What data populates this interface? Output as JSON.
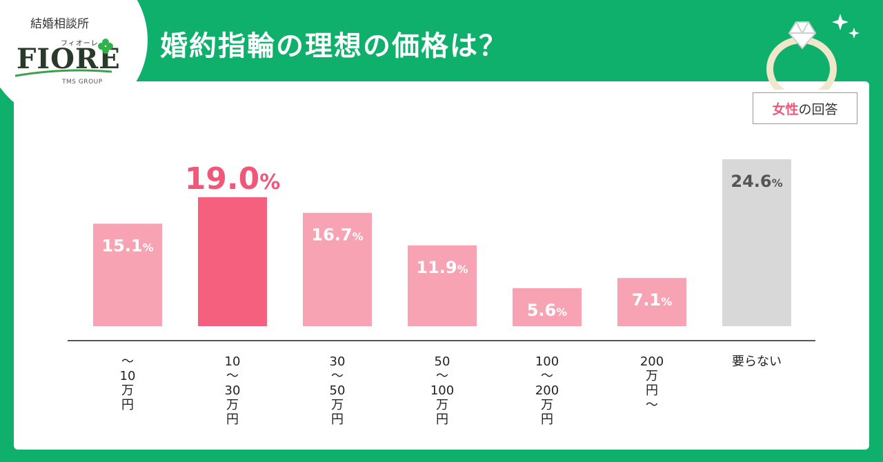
{
  "logo": {
    "top_text": "結婚相談所",
    "kana": "フィオーレ",
    "main": "FIORE",
    "group": "TMS GROUP"
  },
  "title": "婚約指輪の理想の価格は？",
  "legend": {
    "accent": "女性",
    "rest": "の回答"
  },
  "colors": {
    "background": "#0faf6c",
    "bar": "#f8a3b4",
    "bar_highlight": "#f5607f",
    "bar_none": "#d8d8d8",
    "label_highlight": "#f0587a",
    "label_none": "#555555"
  },
  "chart_data": {
    "type": "bar",
    "categories": [
      [
        "～",
        "10",
        "万",
        "円"
      ],
      [
        "10",
        "～",
        "30",
        "万",
        "円"
      ],
      [
        "30",
        "～",
        "50",
        "万",
        "円"
      ],
      [
        "50",
        "～",
        "100",
        "万",
        "円"
      ],
      [
        "100",
        "～",
        "200",
        "万",
        "円"
      ],
      [
        "200",
        "万",
        "円",
        "～"
      ],
      [
        "要らない"
      ]
    ],
    "values": [
      15.1,
      19.0,
      16.7,
      11.9,
      5.6,
      7.1,
      24.6
    ],
    "value_labels": [
      "15.1",
      "19.0",
      "16.7",
      "11.9",
      "5.6",
      "7.1",
      "24.6"
    ],
    "unit": "%",
    "highlight_index": 1,
    "none_index": 6,
    "ylim": [
      0,
      25
    ],
    "grid": false,
    "legend": "top-right"
  }
}
